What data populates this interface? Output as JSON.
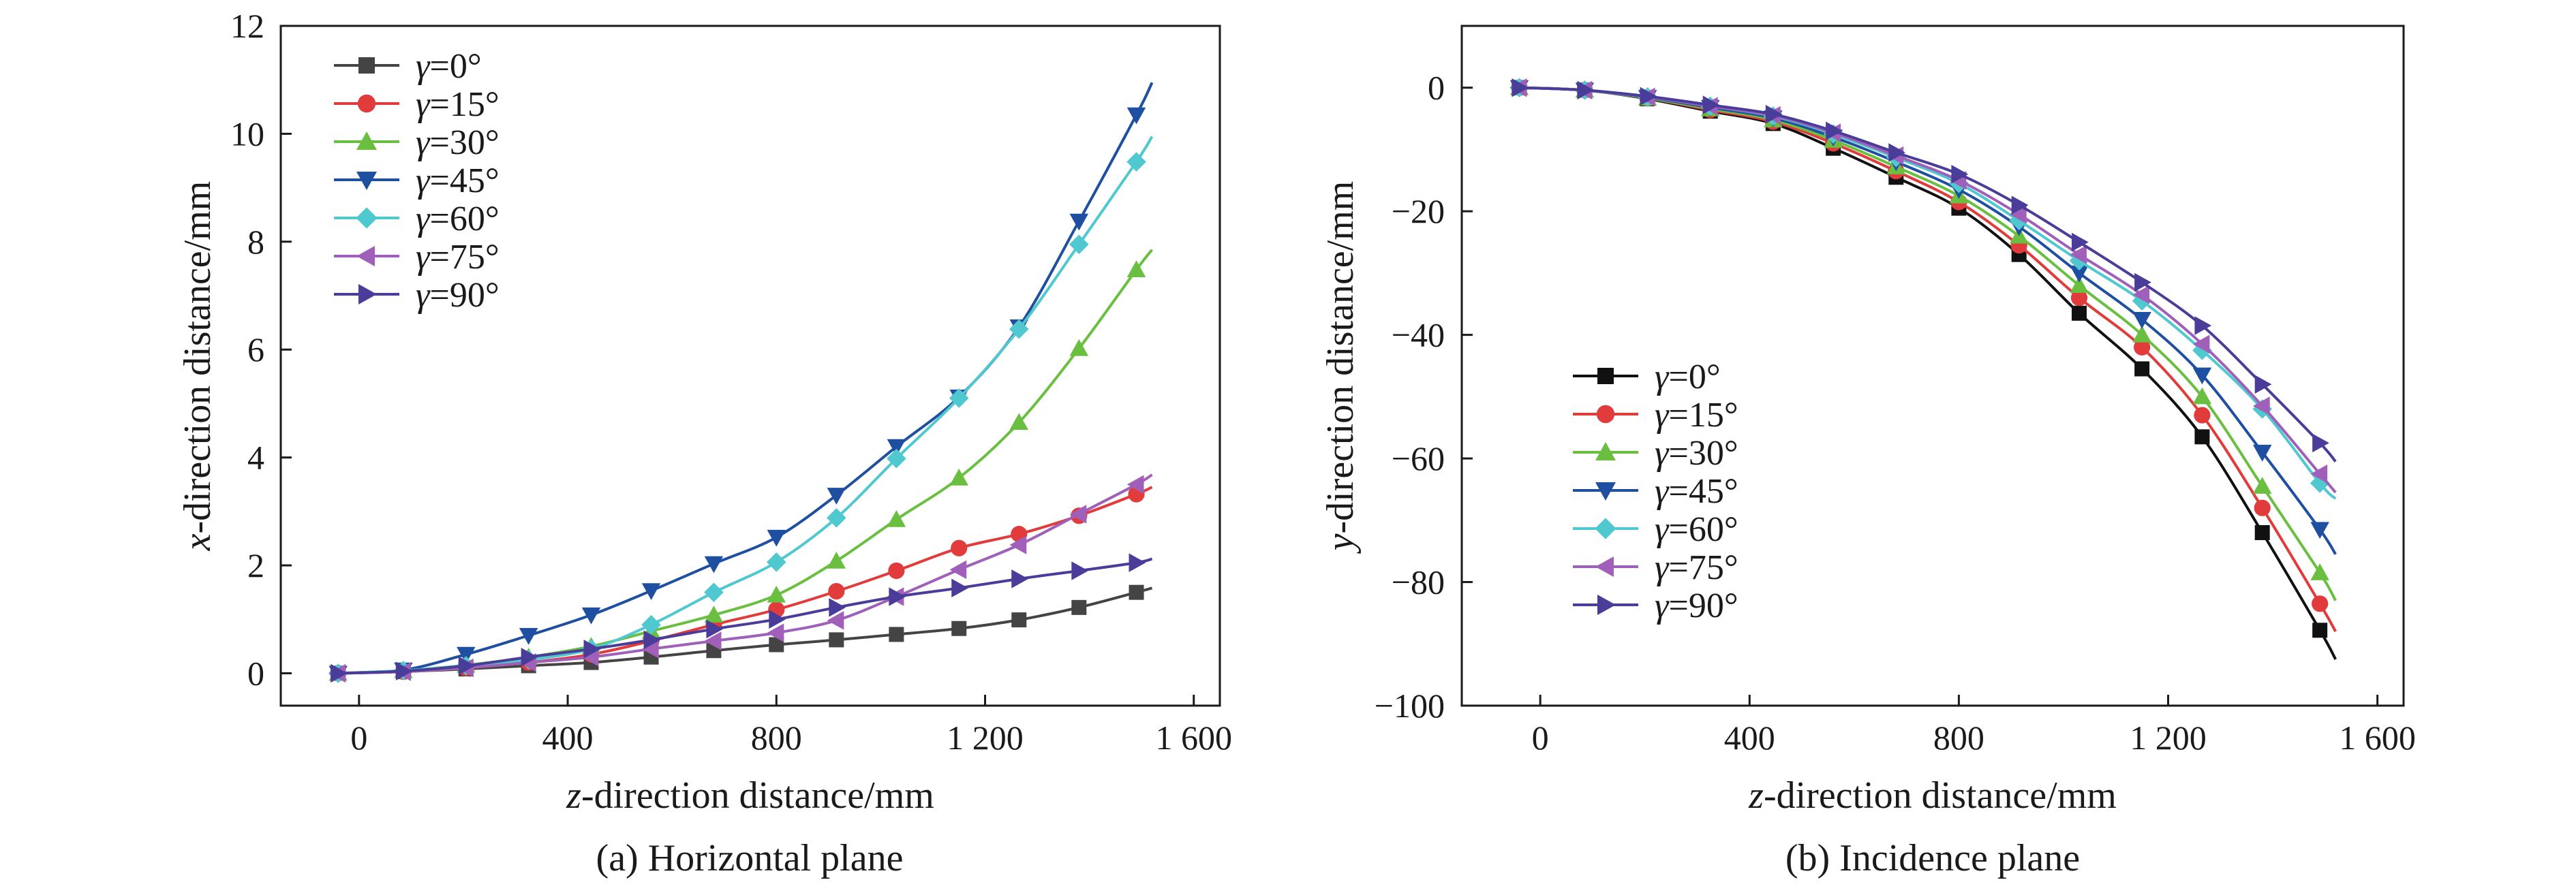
{
  "chart_data": [
    {
      "type": "line",
      "caption": "(a) Horizontal plane",
      "xlabel_var": "z",
      "xlabel": "-direction distance/mm",
      "ylabel_var": "x",
      "ylabel": "-direction distance/mm",
      "xlim": [
        -150,
        1650
      ],
      "ylim": [
        -0.6,
        12
      ],
      "x_ticks": [
        0,
        400,
        800,
        1200,
        1600
      ],
      "x_tick_labels": [
        "0",
        "400",
        "800",
        "1 200",
        "1 600"
      ],
      "y_ticks": [
        0,
        2,
        4,
        6,
        8,
        10,
        12
      ],
      "y_tick_labels": [
        "0",
        "2",
        "4",
        "6",
        "8",
        "10",
        "12"
      ],
      "legend_position": "top-left",
      "x": [
        -40,
        85,
        205,
        325,
        445,
        560,
        680,
        800,
        915,
        1030,
        1150,
        1265,
        1380,
        1490
      ],
      "series": [
        {
          "label_var": "γ",
          "label": "=0°",
          "color": "#444444",
          "marker": "square",
          "values": [
            0,
            0.03,
            0.08,
            0.14,
            0.2,
            0.3,
            0.42,
            0.53,
            0.62,
            0.72,
            0.83,
            0.99,
            1.22,
            1.5
          ],
          "end": [
            1520,
            1.58
          ]
        },
        {
          "label_var": "γ",
          "label": "=15°",
          "color": "#e23b3b",
          "marker": "circle",
          "values": [
            0,
            0.03,
            0.1,
            0.2,
            0.35,
            0.6,
            0.9,
            1.18,
            1.52,
            1.9,
            2.32,
            2.58,
            2.92,
            3.32
          ],
          "end": [
            1520,
            3.45
          ]
        },
        {
          "label_var": "γ",
          "label": "=30°",
          "color": "#6abf40",
          "marker": "triangle-up",
          "values": [
            0,
            0.05,
            0.15,
            0.3,
            0.5,
            0.78,
            1.08,
            1.45,
            2.08,
            2.85,
            3.62,
            4.65,
            6.02,
            7.48
          ],
          "end": [
            1520,
            7.85
          ]
        },
        {
          "label_var": "γ",
          "label": "=45°",
          "color": "#1f4fa0",
          "marker": "triangle-down",
          "values": [
            0,
            0.06,
            0.35,
            0.7,
            1.08,
            1.53,
            2.03,
            2.52,
            3.3,
            4.2,
            5.12,
            6.42,
            8.38,
            10.35
          ],
          "end": [
            1520,
            10.95
          ]
        },
        {
          "label_var": "γ",
          "label": "=60°",
          "color": "#4fc8d0",
          "marker": "diamond",
          "values": [
            0,
            0.05,
            0.14,
            0.25,
            0.45,
            0.9,
            1.5,
            2.06,
            2.88,
            3.98,
            5.1,
            6.38,
            7.95,
            9.48
          ],
          "end": [
            1520,
            9.95
          ]
        },
        {
          "label_var": "γ",
          "label": "=75°",
          "color": "#a05fb8",
          "marker": "triangle-left",
          "values": [
            0,
            0.03,
            0.1,
            0.2,
            0.3,
            0.45,
            0.6,
            0.75,
            0.98,
            1.42,
            1.92,
            2.38,
            2.95,
            3.5
          ],
          "end": [
            1520,
            3.68
          ]
        },
        {
          "label_var": "γ",
          "label": "=90°",
          "color": "#4a3d9a",
          "marker": "triangle-right",
          "values": [
            0,
            0.04,
            0.14,
            0.3,
            0.45,
            0.62,
            0.82,
            1.0,
            1.22,
            1.42,
            1.58,
            1.75,
            1.9,
            2.05
          ],
          "end": [
            1520,
            2.12
          ]
        }
      ]
    },
    {
      "type": "line",
      "caption": "(b) Incidence plane",
      "xlabel_var": "z",
      "xlabel": "-direction distance/mm",
      "ylabel_var": "y",
      "ylabel": "-direction distance/mm",
      "xlim": [
        -150,
        1650
      ],
      "ylim": [
        -100,
        10
      ],
      "x_ticks": [
        0,
        400,
        800,
        1200,
        1600
      ],
      "x_tick_labels": [
        "0",
        "400",
        "800",
        "1 200",
        "1 600"
      ],
      "y_ticks": [
        0,
        -20,
        -40,
        -60,
        -80,
        -100
      ],
      "y_tick_labels": [
        "0",
        "−20",
        "−40",
        "−60",
        "−80",
        "−100"
      ],
      "legend_position": "center-left",
      "x": [
        -40,
        85,
        205,
        325,
        445,
        560,
        680,
        800,
        915,
        1030,
        1150,
        1265,
        1380,
        1490
      ],
      "series": [
        {
          "label_var": "γ",
          "label": "=0°",
          "color": "#111111",
          "marker": "square",
          "values": [
            0,
            -0.4,
            -1.8,
            -3.8,
            -5.8,
            -9.8,
            -14.5,
            -19.5,
            -27.0,
            -36.5,
            -45.5,
            -56.5,
            -72.0,
            -87.8
          ],
          "end": [
            1520,
            -92.5
          ]
        },
        {
          "label_var": "γ",
          "label": "=15°",
          "color": "#e23b3b",
          "marker": "circle",
          "values": [
            0,
            -0.4,
            -1.7,
            -3.6,
            -5.5,
            -9.0,
            -13.5,
            -18.5,
            -25.5,
            -34.0,
            -42.0,
            -53.0,
            -68.0,
            -83.5
          ],
          "end": [
            1520,
            -88.0
          ]
        },
        {
          "label_var": "γ",
          "label": "=30°",
          "color": "#6abf40",
          "marker": "triangle-up",
          "values": [
            0,
            -0.4,
            -1.7,
            -3.4,
            -5.2,
            -8.5,
            -12.8,
            -17.5,
            -24.0,
            -32.0,
            -40.0,
            -50.0,
            -64.5,
            -78.5
          ],
          "end": [
            1520,
            -83.0
          ]
        },
        {
          "label_var": "γ",
          "label": "=45°",
          "color": "#1f4fa0",
          "marker": "triangle-down",
          "values": [
            0,
            -0.4,
            -1.6,
            -3.2,
            -4.9,
            -8.0,
            -12.0,
            -16.5,
            -22.5,
            -30.0,
            -37.5,
            -46.5,
            -59.0,
            -71.5
          ],
          "end": [
            1520,
            -75.5
          ]
        },
        {
          "label_var": "γ",
          "label": "=60°",
          "color": "#4fc8d0",
          "marker": "diamond",
          "values": [
            0,
            -0.4,
            -1.5,
            -3.0,
            -4.6,
            -7.5,
            -11.3,
            -15.5,
            -21.5,
            -28.0,
            -34.5,
            -42.5,
            -52.0,
            -64.0
          ],
          "end": [
            1520,
            -66.5
          ]
        },
        {
          "label_var": "γ",
          "label": "=75°",
          "color": "#a05fb8",
          "marker": "triangle-left",
          "values": [
            0,
            -0.4,
            -1.5,
            -3.0,
            -4.5,
            -7.3,
            -11.0,
            -15.0,
            -20.5,
            -27.0,
            -33.5,
            -41.5,
            -51.5,
            -62.5
          ],
          "end": [
            1520,
            -65.5
          ]
        },
        {
          "label_var": "γ",
          "label": "=90°",
          "color": "#4a3d9a",
          "marker": "triangle-right",
          "values": [
            0,
            -0.4,
            -1.4,
            -2.8,
            -4.3,
            -7.0,
            -10.5,
            -14.0,
            -19.0,
            -25.0,
            -31.5,
            -38.5,
            -48.0,
            -57.5
          ],
          "end": [
            1520,
            -60.5
          ]
        }
      ]
    }
  ]
}
